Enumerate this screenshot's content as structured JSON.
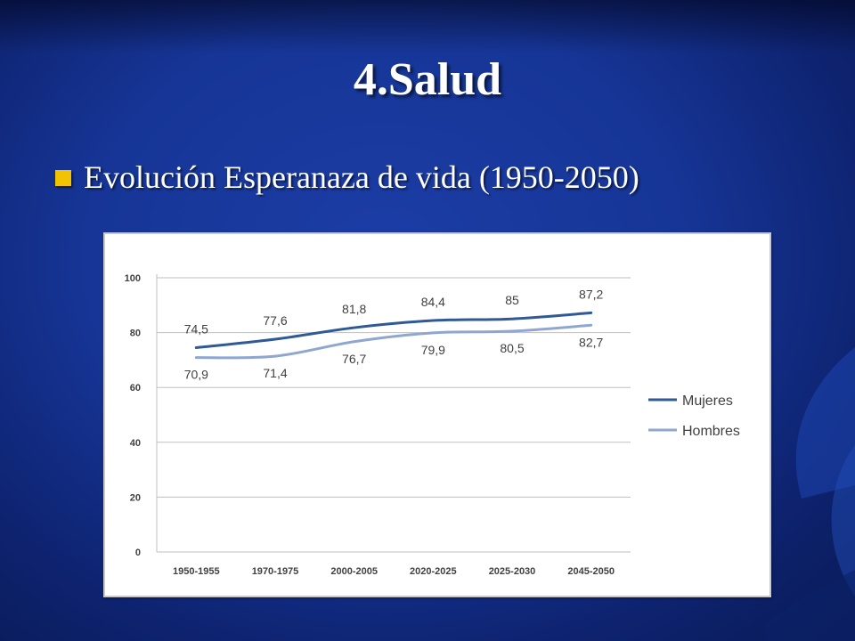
{
  "slide": {
    "title": "4.Salud",
    "bullet": "Evolución Esperanaza de vida (1950-2050)"
  },
  "colors": {
    "background": "#163596",
    "bullet_marker": "#f2c300",
    "mujeres_line": "#2f5a96",
    "hombres_line": "#8fa7d0"
  },
  "chart_data": {
    "type": "line",
    "title": "",
    "xlabel": "",
    "ylabel": "",
    "categories": [
      "1950-1955",
      "1970-1975",
      "2000-2005",
      "2020-2025",
      "2025-2030",
      "2045-2050"
    ],
    "series": [
      {
        "name": "Mujeres",
        "values": [
          74.5,
          77.6,
          81.8,
          84.4,
          85,
          87.2
        ],
        "labels": [
          "74,5",
          "77,6",
          "81,8",
          "84,4",
          "85",
          "87,2"
        ],
        "color": "#2f5a96"
      },
      {
        "name": "Hombres",
        "values": [
          70.9,
          71.4,
          76.7,
          79.9,
          80.5,
          82.7
        ],
        "labels": [
          "70,9",
          "71,4",
          "76,7",
          "79,9",
          "80,5",
          "82,7"
        ],
        "color": "#8fa7d0"
      }
    ],
    "ylim": [
      0,
      100
    ],
    "yticks": [
      0,
      20,
      40,
      60,
      80,
      100
    ],
    "grid": true,
    "legend_position": "right"
  }
}
